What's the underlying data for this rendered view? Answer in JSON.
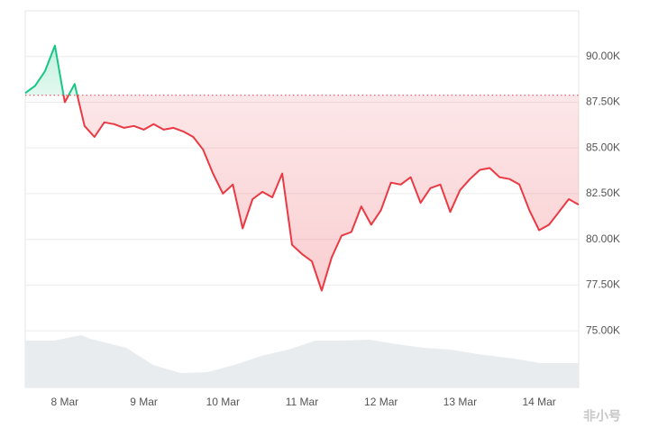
{
  "chart_data": {
    "type": "line",
    "categories": [
      null,
      null,
      null,
      null,
      "8 Mar",
      null,
      null,
      null,
      null,
      null,
      null,
      null,
      "9 Mar",
      null,
      null,
      null,
      null,
      null,
      null,
      null,
      "10 Mar",
      null,
      null,
      null,
      null,
      null,
      null,
      null,
      "11 Mar",
      null,
      null,
      null,
      null,
      null,
      null,
      null,
      "12 Mar",
      null,
      null,
      null,
      null,
      null,
      null,
      null,
      "13 Mar",
      null,
      null,
      null,
      null,
      null,
      null,
      null,
      "14 Mar",
      null,
      null,
      null,
      null
    ],
    "series": [
      {
        "values": [
          88000,
          88400,
          89200,
          90600,
          87500,
          88500,
          86200,
          85600,
          86400,
          86300,
          86100,
          86200,
          86000,
          86300,
          86000,
          86100,
          85900,
          85600,
          84900,
          83600,
          82500,
          83000,
          80600,
          82200,
          82600,
          82300,
          83600,
          79700,
          79200,
          78800,
          77200,
          79000,
          80200,
          80400,
          81800,
          80800,
          81600,
          83100,
          83000,
          83400,
          82000,
          82800,
          83000,
          81500,
          82700,
          83300,
          83800,
          83900,
          83400,
          83300,
          83000,
          81600,
          80500,
          80800,
          81500,
          82200,
          81900
        ]
      }
    ],
    "baseline": 87880,
    "up_color": "#16c784",
    "down_color": "#ea3943",
    "ylim": [
      71900,
      92500
    ],
    "yticks": [
      {
        "value": 75000,
        "label": "75.00K"
      },
      {
        "value": 77500,
        "label": "77.50K"
      },
      {
        "value": 80000,
        "label": "80.00K"
      },
      {
        "value": 82500,
        "label": "82.50K"
      },
      {
        "value": 85000,
        "label": "85.00K"
      },
      {
        "value": 87500,
        "label": "87.50K"
      },
      {
        "value": 90000,
        "label": "90.00K"
      }
    ],
    "grid": true,
    "watermark": "非小号"
  }
}
